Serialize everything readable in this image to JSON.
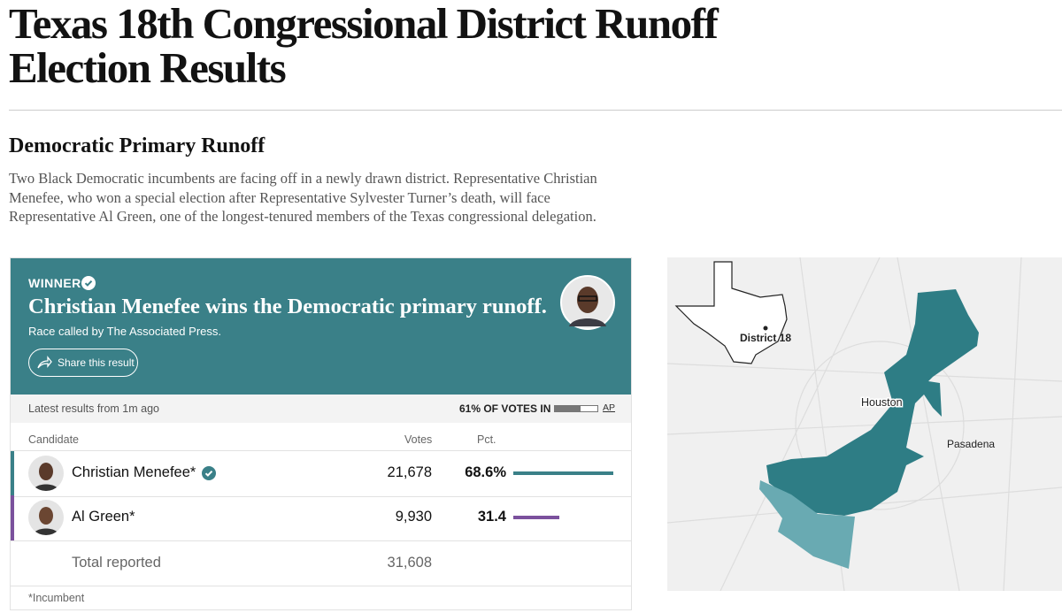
{
  "header": {
    "title_lines": [
      "Texas 18th Congressional District Runoff",
      "Election Results"
    ]
  },
  "section": {
    "title": "Democratic Primary Runoff",
    "description": "Two Black Democratic incumbents are facing off in a newly drawn district. Representative Christian Menefee, who won a special election after Representative Sylvester Turner’s death, will face Representative Al Green, one of the longest-tenured members of the Texas congressional delegation."
  },
  "result_card": {
    "winner_label": "WINNER",
    "headline": "Christian Menefee wins the Democratic primary runoff.",
    "called_by": "Race called by The Associated Press.",
    "share_button": "Share this result",
    "latest": "Latest results from 1m ago",
    "votes_in": {
      "value": 61,
      "label": "61% OF VOTES IN"
    },
    "source": "AP"
  },
  "table": {
    "columns": [
      "Candidate",
      "Votes",
      "Pct."
    ],
    "rows": [
      {
        "name": "Christian Menefee*",
        "votes": "21,678",
        "pct": {
          "value": 68.6,
          "label": "68.6%"
        },
        "color": "#3a8088"
      },
      {
        "name": "Al Green*",
        "votes": "9,930",
        "pct": {
          "value": 31.4,
          "label": "31.4"
        },
        "color": "#7b519d"
      }
    ],
    "total": {
      "label": "Total reported",
      "votes": "31,608"
    },
    "footnote": "*Incumbent"
  },
  "map": {
    "labels": [
      "District 18",
      "Houston",
      "Pasadena"
    ]
  }
}
